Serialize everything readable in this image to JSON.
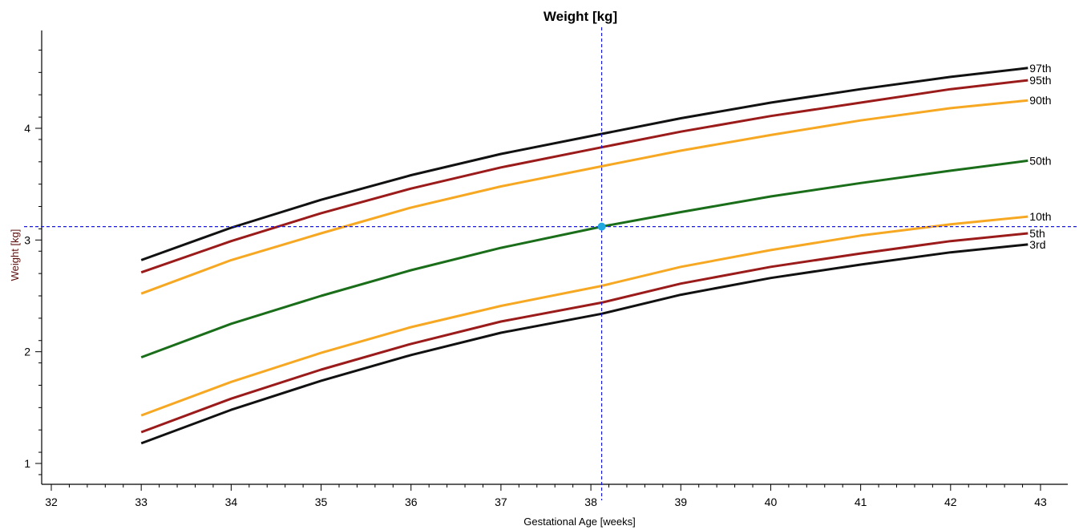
{
  "chart_data": {
    "type": "line",
    "title": "Weight [kg]",
    "xlabel": "Gestational Age [weeks]",
    "ylabel": "Weight [kg]",
    "xlim": [
      31.9,
      43.3
    ],
    "ylim": [
      0.8,
      4.9
    ],
    "x_ticks": [
      32,
      33,
      34,
      35,
      36,
      37,
      38,
      39,
      40,
      41,
      42,
      43
    ],
    "y_ticks": [
      1,
      2,
      3,
      4
    ],
    "x": [
      33,
      34,
      35,
      36,
      37,
      38.12,
      39,
      40,
      41,
      42,
      42.86
    ],
    "series": [
      {
        "name": "97th",
        "color": "#111111",
        "values": [
          2.82,
          3.11,
          3.36,
          3.58,
          3.77,
          3.95,
          4.09,
          4.23,
          4.35,
          4.46,
          4.54
        ]
      },
      {
        "name": "95th",
        "color": "#9b1b1b",
        "values": [
          2.71,
          2.99,
          3.24,
          3.46,
          3.65,
          3.83,
          3.97,
          4.11,
          4.23,
          4.35,
          4.43
        ]
      },
      {
        "name": "90th",
        "color": "#f7a823",
        "values": [
          2.52,
          2.82,
          3.06,
          3.29,
          3.48,
          3.66,
          3.8,
          3.94,
          4.07,
          4.18,
          4.25
        ]
      },
      {
        "name": "50th",
        "color": "#1a6e1a",
        "values": [
          1.95,
          2.25,
          2.5,
          2.73,
          2.93,
          3.12,
          3.25,
          3.39,
          3.51,
          3.62,
          3.71
        ]
      },
      {
        "name": "10th",
        "color": "#f7a823",
        "values": [
          1.43,
          1.73,
          1.99,
          2.22,
          2.41,
          2.59,
          2.76,
          2.91,
          3.04,
          3.14,
          3.21
        ]
      },
      {
        "name": "5th",
        "color": "#9b1b1b",
        "values": [
          1.28,
          1.58,
          1.84,
          2.07,
          2.27,
          2.44,
          2.61,
          2.76,
          2.88,
          2.99,
          3.06
        ]
      },
      {
        "name": "3rd",
        "color": "#111111",
        "values": [
          1.18,
          1.48,
          1.74,
          1.97,
          2.17,
          2.34,
          2.51,
          2.66,
          2.78,
          2.89,
          2.96
        ]
      }
    ],
    "crosshair": {
      "x": 38.12,
      "y": 3.12,
      "color": "#1a1adb",
      "marker_color": "#21a8e0"
    },
    "grid": false,
    "legend": "labels at right end of each line"
  }
}
